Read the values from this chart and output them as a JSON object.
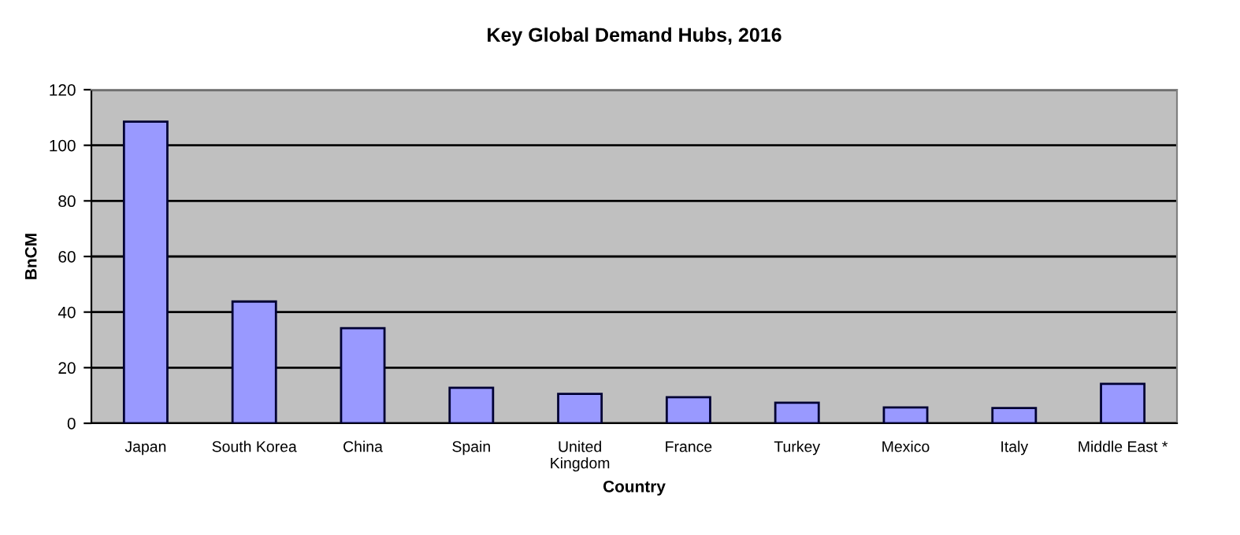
{
  "chart_data": {
    "type": "bar",
    "title": "Key Global Demand Hubs, 2016",
    "xlabel": "Country",
    "ylabel": "BnCM",
    "categories": [
      "Japan",
      "South Korea",
      "China",
      "Spain",
      "United\nKingdom",
      "France",
      "Turkey",
      "Mexico",
      "Italy",
      "Middle East *"
    ],
    "values": [
      108.5,
      43.8,
      34.2,
      12.8,
      10.6,
      9.4,
      7.4,
      5.7,
      5.5,
      14.2
    ],
    "color": "#9999ff",
    "ylim": [
      0,
      120
    ],
    "yticks": [
      0,
      20,
      40,
      60,
      80,
      100,
      120
    ],
    "grid": "y"
  }
}
